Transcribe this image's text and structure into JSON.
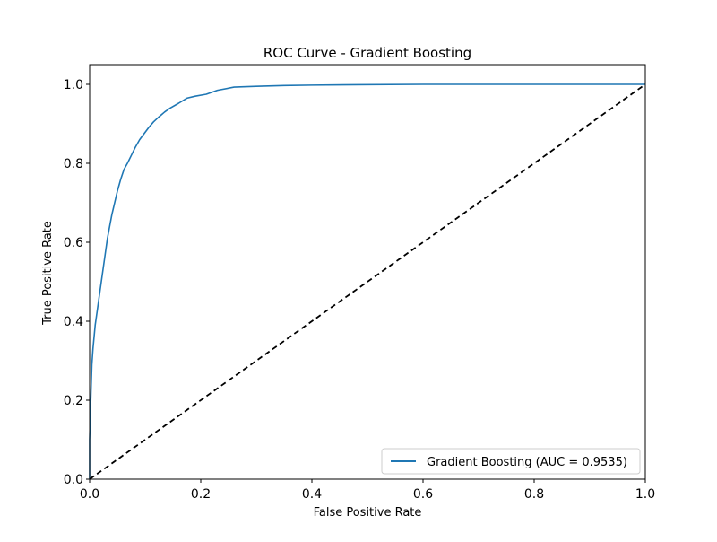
{
  "chart_data": {
    "type": "line",
    "title": "ROC Curve - Gradient Boosting",
    "xlabel": "False Positive Rate",
    "ylabel": "True Positive Rate",
    "xlim": [
      0.0,
      1.0
    ],
    "ylim": [
      0.0,
      1.05
    ],
    "xticks": [
      0.0,
      0.2,
      0.4,
      0.6,
      0.8,
      1.0
    ],
    "yticks": [
      0.0,
      0.2,
      0.4,
      0.6,
      0.8,
      1.0
    ],
    "xtick_labels": [
      "0.0",
      "0.2",
      "0.4",
      "0.6",
      "0.8",
      "1.0"
    ],
    "ytick_labels": [
      "0.0",
      "0.2",
      "0.4",
      "0.6",
      "0.8",
      "1.0"
    ],
    "grid": false,
    "legend_position": "lower-right",
    "series": [
      {
        "name": "Gradient Boosting (AUC = 0.9535)",
        "color": "#1f77b4",
        "style": "solid",
        "x": [
          0.0,
          0.0,
          0.002,
          0.004,
          0.006,
          0.008,
          0.01,
          0.013,
          0.016,
          0.02,
          0.024,
          0.028,
          0.032,
          0.036,
          0.04,
          0.045,
          0.05,
          0.056,
          0.062,
          0.068,
          0.075,
          0.082,
          0.09,
          0.098,
          0.106,
          0.115,
          0.125,
          0.135,
          0.145,
          0.16,
          0.175,
          0.19,
          0.21,
          0.23,
          0.26,
          0.3,
          0.35,
          0.4,
          0.48,
          0.6,
          0.8,
          1.0
        ],
        "y": [
          0.0,
          0.1,
          0.2,
          0.29,
          0.33,
          0.36,
          0.39,
          0.42,
          0.45,
          0.49,
          0.53,
          0.57,
          0.61,
          0.64,
          0.67,
          0.7,
          0.73,
          0.76,
          0.785,
          0.8,
          0.82,
          0.84,
          0.86,
          0.875,
          0.89,
          0.905,
          0.918,
          0.93,
          0.94,
          0.952,
          0.965,
          0.97,
          0.975,
          0.985,
          0.993,
          0.995,
          0.997,
          0.998,
          0.999,
          1.0,
          1.0,
          1.0
        ]
      },
      {
        "name": "",
        "color": "#000000",
        "style": "dashed",
        "x": [
          0.0,
          1.0
        ],
        "y": [
          0.0,
          1.0
        ]
      }
    ]
  }
}
